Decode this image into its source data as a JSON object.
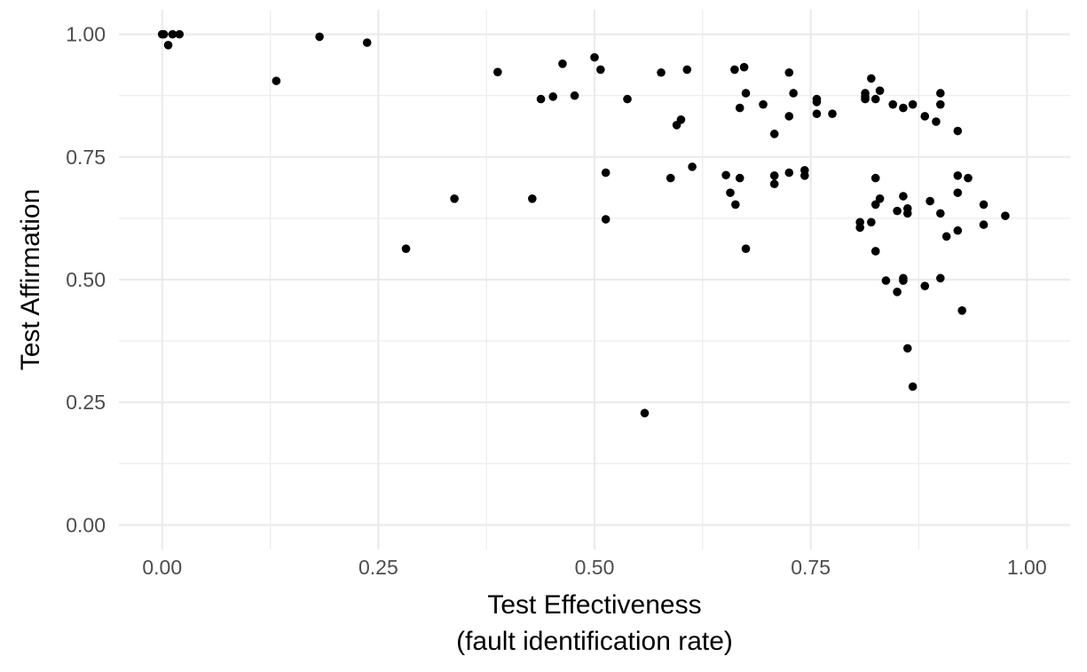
{
  "chart_data": {
    "type": "scatter",
    "title": "",
    "xlabel_lines": [
      "Test Effectiveness",
      "(fault identification rate)"
    ],
    "ylabel": "Test Affirmation",
    "xlim": [
      -0.05,
      1.05
    ],
    "ylim": [
      -0.05,
      1.05
    ],
    "x_ticks": [
      0.0,
      0.25,
      0.5,
      0.75,
      1.0
    ],
    "x_tick_labels": [
      "0.00",
      "0.25",
      "0.50",
      "0.75",
      "1.00"
    ],
    "y_ticks": [
      0.0,
      0.25,
      0.5,
      0.75,
      1.0
    ],
    "y_tick_labels": [
      "0.00",
      "0.25",
      "0.50",
      "0.75",
      "1.00"
    ],
    "grid": true,
    "point_color": "#000000",
    "points": [
      {
        "x": 0.0,
        "y": 1.0
      },
      {
        "x": 0.002,
        "y": 1.0
      },
      {
        "x": 0.012,
        "y": 1.0
      },
      {
        "x": 0.02,
        "y": 1.0
      },
      {
        "x": 0.007,
        "y": 0.978
      },
      {
        "x": 0.132,
        "y": 0.905
      },
      {
        "x": 0.182,
        "y": 0.995
      },
      {
        "x": 0.237,
        "y": 0.983
      },
      {
        "x": 0.282,
        "y": 0.563
      },
      {
        "x": 0.338,
        "y": 0.665
      },
      {
        "x": 0.388,
        "y": 0.923
      },
      {
        "x": 0.428,
        "y": 0.665
      },
      {
        "x": 0.438,
        "y": 0.868
      },
      {
        "x": 0.452,
        "y": 0.873
      },
      {
        "x": 0.463,
        "y": 0.94
      },
      {
        "x": 0.477,
        "y": 0.875
      },
      {
        "x": 0.5,
        "y": 0.953
      },
      {
        "x": 0.507,
        "y": 0.928
      },
      {
        "x": 0.513,
        "y": 0.718
      },
      {
        "x": 0.513,
        "y": 0.623
      },
      {
        "x": 0.538,
        "y": 0.868
      },
      {
        "x": 0.558,
        "y": 0.228
      },
      {
        "x": 0.577,
        "y": 0.922
      },
      {
        "x": 0.588,
        "y": 0.707
      },
      {
        "x": 0.595,
        "y": 0.815
      },
      {
        "x": 0.6,
        "y": 0.826
      },
      {
        "x": 0.607,
        "y": 0.928
      },
      {
        "x": 0.613,
        "y": 0.73
      },
      {
        "x": 0.652,
        "y": 0.713
      },
      {
        "x": 0.657,
        "y": 0.677
      },
      {
        "x": 0.662,
        "y": 0.928
      },
      {
        "x": 0.663,
        "y": 0.653
      },
      {
        "x": 0.668,
        "y": 0.85
      },
      {
        "x": 0.668,
        "y": 0.707
      },
      {
        "x": 0.673,
        "y": 0.933
      },
      {
        "x": 0.675,
        "y": 0.88
      },
      {
        "x": 0.675,
        "y": 0.563
      },
      {
        "x": 0.695,
        "y": 0.857
      },
      {
        "x": 0.708,
        "y": 0.797
      },
      {
        "x": 0.708,
        "y": 0.712
      },
      {
        "x": 0.708,
        "y": 0.695
      },
      {
        "x": 0.725,
        "y": 0.922
      },
      {
        "x": 0.725,
        "y": 0.833
      },
      {
        "x": 0.725,
        "y": 0.718
      },
      {
        "x": 0.73,
        "y": 0.88
      },
      {
        "x": 0.743,
        "y": 0.723
      },
      {
        "x": 0.743,
        "y": 0.712
      },
      {
        "x": 0.757,
        "y": 0.868
      },
      {
        "x": 0.757,
        "y": 0.862
      },
      {
        "x": 0.757,
        "y": 0.838
      },
      {
        "x": 0.775,
        "y": 0.838
      },
      {
        "x": 0.807,
        "y": 0.617
      },
      {
        "x": 0.807,
        "y": 0.606
      },
      {
        "x": 0.813,
        "y": 0.88
      },
      {
        "x": 0.813,
        "y": 0.873
      },
      {
        "x": 0.813,
        "y": 0.868
      },
      {
        "x": 0.82,
        "y": 0.91
      },
      {
        "x": 0.82,
        "y": 0.617
      },
      {
        "x": 0.825,
        "y": 0.868
      },
      {
        "x": 0.825,
        "y": 0.707
      },
      {
        "x": 0.825,
        "y": 0.653
      },
      {
        "x": 0.825,
        "y": 0.558
      },
      {
        "x": 0.83,
        "y": 0.885
      },
      {
        "x": 0.83,
        "y": 0.665
      },
      {
        "x": 0.837,
        "y": 0.498
      },
      {
        "x": 0.845,
        "y": 0.857
      },
      {
        "x": 0.85,
        "y": 0.64
      },
      {
        "x": 0.85,
        "y": 0.475
      },
      {
        "x": 0.857,
        "y": 0.85
      },
      {
        "x": 0.857,
        "y": 0.67
      },
      {
        "x": 0.857,
        "y": 0.503
      },
      {
        "x": 0.857,
        "y": 0.498
      },
      {
        "x": 0.862,
        "y": 0.645
      },
      {
        "x": 0.862,
        "y": 0.635
      },
      {
        "x": 0.862,
        "y": 0.36
      },
      {
        "x": 0.868,
        "y": 0.857
      },
      {
        "x": 0.868,
        "y": 0.282
      },
      {
        "x": 0.882,
        "y": 0.833
      },
      {
        "x": 0.882,
        "y": 0.487
      },
      {
        "x": 0.888,
        "y": 0.66
      },
      {
        "x": 0.895,
        "y": 0.822
      },
      {
        "x": 0.9,
        "y": 0.88
      },
      {
        "x": 0.9,
        "y": 0.857
      },
      {
        "x": 0.9,
        "y": 0.635
      },
      {
        "x": 0.9,
        "y": 0.503
      },
      {
        "x": 0.907,
        "y": 0.588
      },
      {
        "x": 0.92,
        "y": 0.803
      },
      {
        "x": 0.92,
        "y": 0.712
      },
      {
        "x": 0.92,
        "y": 0.677
      },
      {
        "x": 0.92,
        "y": 0.6
      },
      {
        "x": 0.925,
        "y": 0.437
      },
      {
        "x": 0.932,
        "y": 0.707
      },
      {
        "x": 0.95,
        "y": 0.653
      },
      {
        "x": 0.95,
        "y": 0.612
      },
      {
        "x": 0.975,
        "y": 0.63
      }
    ]
  }
}
